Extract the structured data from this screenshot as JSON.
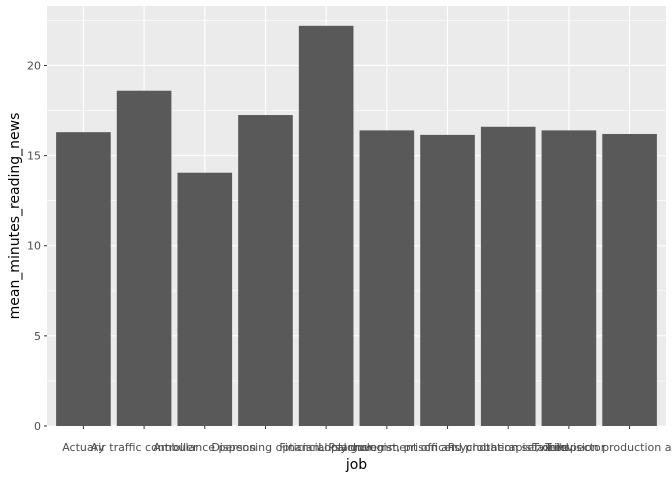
{
  "chart_data": {
    "type": "bar",
    "categories": [
      "Actuary",
      "Air traffic controller",
      "Ambulance person",
      "Dispensing optician",
      "Financial planner",
      "Local government officer",
      "Psychologist, prison and probation services",
      "Psychotherapist, child",
      "Tax inspector",
      "Television production assistant"
    ],
    "values": [
      16.3,
      18.6,
      14.05,
      17.25,
      22.2,
      16.4,
      16.15,
      16.6,
      16.4,
      16.2
    ],
    "xlabel": "job",
    "ylabel": "mean_minutes_reading_news",
    "ylim": [
      0,
      23.3
    ],
    "yticks": [
      0,
      5,
      10,
      15,
      20
    ],
    "grid": true,
    "colors": {
      "panel_background": "#ebebeb",
      "grid_major": "#ffffff",
      "bar_fill": "#595959",
      "tick_text": "#4d4d4d",
      "tick_mark": "#333333"
    }
  }
}
